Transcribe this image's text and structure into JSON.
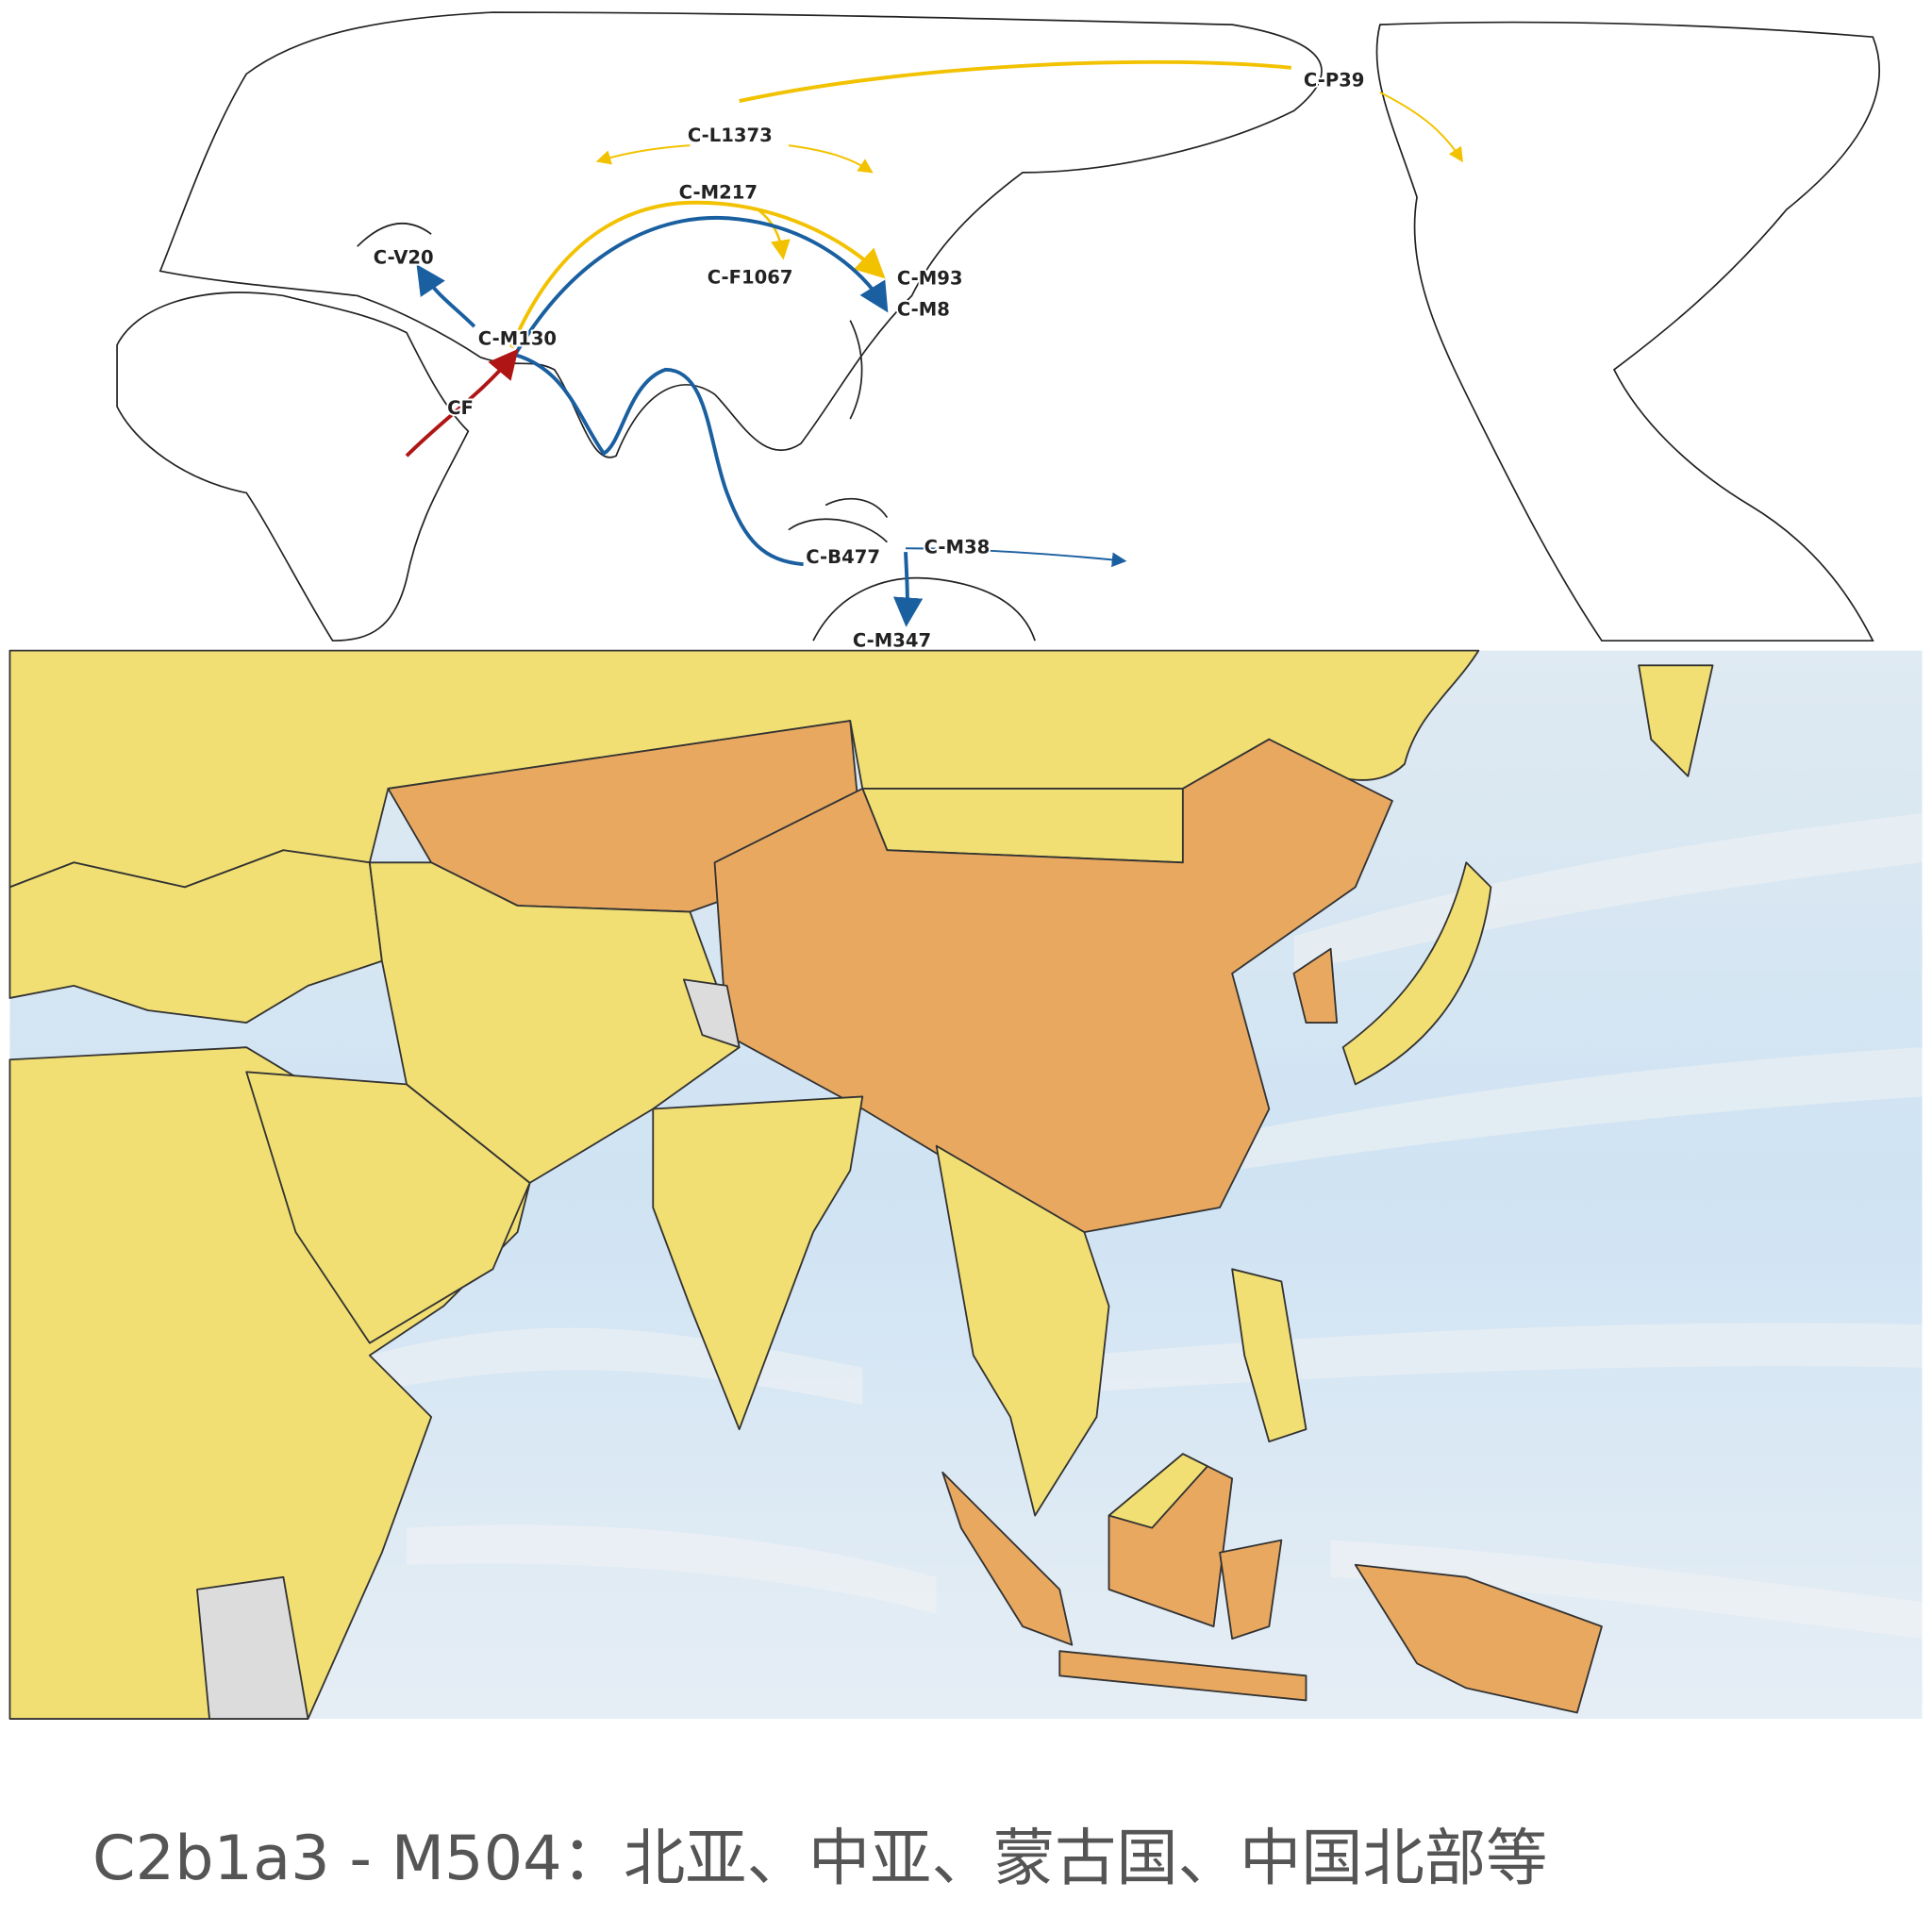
{
  "top_map": {
    "labels": [
      "C-P39",
      "C-L1373",
      "C-M217",
      "C-V20",
      "C-F1067",
      "C-M93",
      "C-M8",
      "C-M130",
      "CF",
      "C-B477",
      "C-M38",
      "C-M347"
    ]
  },
  "caption": "C2b1a3 - M504：北亚、中亚、蒙古国、中国北部等"
}
